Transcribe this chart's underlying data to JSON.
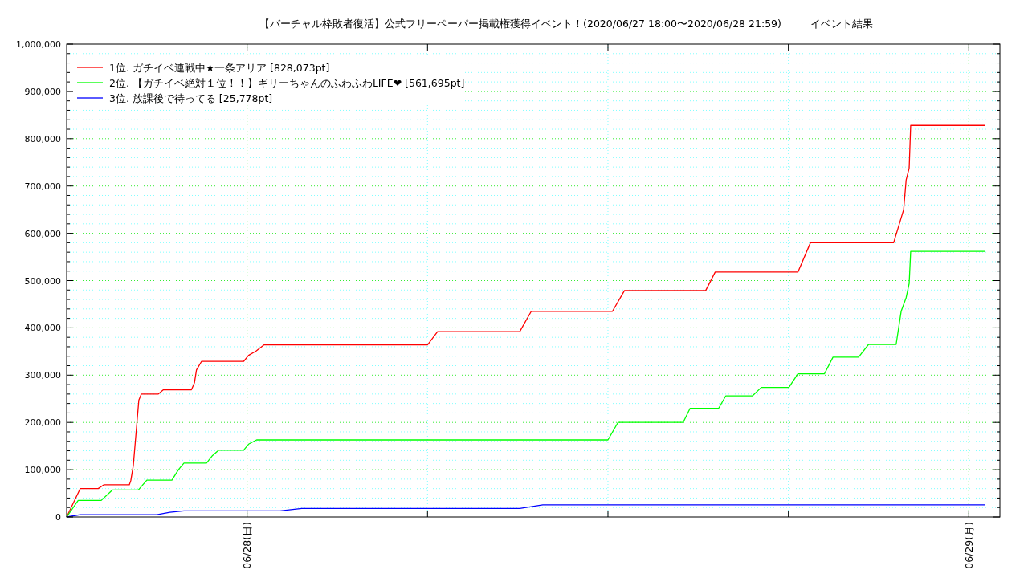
{
  "chart_data": {
    "type": "line",
    "title": "【バーチャル枠敗者復活】公式フリーペーパー掲載権獲得イベント！(2020/06/27 18:00〜2020/06/28 21:59)",
    "subtitle": "イベント結果",
    "xlim": [
      "2020-06-27T18:00",
      "2020-06-29T01:02"
    ],
    "xticks": [
      {
        "value": "2020-06-28T00:00",
        "label": "06/28(日)"
      },
      {
        "value": "2020-06-28T06:00",
        "label": null
      },
      {
        "value": "2020-06-28T12:00",
        "label": null
      },
      {
        "value": "2020-06-28T18:00",
        "label": null
      },
      {
        "value": "2020-06-29T00:00",
        "label": "06/29(月)"
      }
    ],
    "ylim": [
      0,
      1000000
    ],
    "yticks": [
      0,
      {
        "value": 20000,
        "label": null
      },
      {
        "value": 40000,
        "label": null
      },
      {
        "value": 60000,
        "label": null
      },
      {
        "value": 80000,
        "label": null
      },
      {
        "value": 100000,
        "label": "100,000"
      },
      {
        "value": 120000,
        "label": null
      },
      {
        "value": 140000,
        "label": null
      },
      {
        "value": 160000,
        "label": null
      },
      {
        "value": 180000,
        "label": null
      },
      {
        "value": 200000,
        "label": "200,000"
      },
      {
        "value": 220000,
        "label": null
      },
      {
        "value": 240000,
        "label": null
      },
      {
        "value": 260000,
        "label": null
      },
      {
        "value": 280000,
        "label": null
      },
      {
        "value": 300000,
        "label": "300,000"
      },
      {
        "value": 320000,
        "label": null
      },
      {
        "value": 340000,
        "label": null
      },
      {
        "value": 360000,
        "label": null
      },
      {
        "value": 380000,
        "label": null
      },
      {
        "value": 400000,
        "label": "400,000"
      },
      {
        "value": 420000,
        "label": null
      },
      {
        "value": 440000,
        "label": null
      },
      {
        "value": 460000,
        "label": null
      },
      {
        "value": 480000,
        "label": null
      },
      {
        "value": 500000,
        "label": "500,000"
      },
      {
        "value": 520000,
        "label": null
      },
      {
        "value": 540000,
        "label": null
      },
      {
        "value": 560000,
        "label": null
      },
      {
        "value": 580000,
        "label": null
      },
      {
        "value": 600000,
        "label": "600,000"
      },
      {
        "value": 620000,
        "label": null
      },
      {
        "value": 640000,
        "label": null
      },
      {
        "value": 660000,
        "label": null
      },
      {
        "value": 680000,
        "label": null
      },
      {
        "value": 700000,
        "label": "700,000"
      },
      {
        "value": 720000,
        "label": null
      },
      {
        "value": 740000,
        "label": null
      },
      {
        "value": 760000,
        "label": null
      },
      {
        "value": 780000,
        "label": null
      },
      {
        "value": 800000,
        "label": "800,000"
      },
      {
        "value": 820000,
        "label": null
      },
      {
        "value": 840000,
        "label": null
      },
      {
        "value": 860000,
        "label": null
      },
      {
        "value": 880000,
        "label": null
      },
      {
        "value": 900000,
        "label": "900,000"
      },
      {
        "value": 920000,
        "label": null
      },
      {
        "value": 940000,
        "label": null
      },
      {
        "value": 960000,
        "label": null
      },
      {
        "value": 980000,
        "label": null
      },
      {
        "value": 1000000,
        "label": "1,000,000"
      }
    ],
    "grid": true,
    "legend": "top left",
    "marker": "none",
    "line_style": "solid",
    "series": [
      {
        "name": "1位. ガチイベ連戦中★一条アリア [828,073pt]",
        "color": "#ff0000",
        "x": [
          "2020-06-27T18:00",
          "2020-06-27T18:27",
          "2020-06-27T19:03",
          "2020-06-27T19:14",
          "2020-06-27T20:05",
          "2020-06-27T20:08",
          "2020-06-27T20:13",
          "2020-06-27T20:24",
          "2020-06-27T20:29",
          "2020-06-27T21:03",
          "2020-06-27T21:13",
          "2020-06-27T22:09",
          "2020-06-27T22:15",
          "2020-06-27T22:19",
          "2020-06-27T22:29",
          "2020-06-27T23:53",
          "2020-06-28T00:03",
          "2020-06-28T00:18",
          "2020-06-28T00:34",
          "2020-06-28T06:00",
          "2020-06-28T06:20",
          "2020-06-28T09:04",
          "2020-06-28T09:27",
          "2020-06-28T12:09",
          "2020-06-28T12:33",
          "2020-06-28T15:15",
          "2020-06-28T15:34",
          "2020-06-28T18:19",
          "2020-06-28T18:44",
          "2020-06-28T21:30",
          "2020-06-28T21:50",
          "2020-06-28T21:55",
          "2020-06-28T22:01",
          "2020-06-28T22:04",
          "2020-06-29T00:33"
        ],
        "values": [
          0,
          60000,
          60000,
          68000,
          68000,
          77000,
          109000,
          247000,
          260000,
          260000,
          269000,
          269000,
          284000,
          311000,
          329000,
          329000,
          342000,
          351000,
          364000,
          364000,
          392000,
          392000,
          435000,
          435000,
          479000,
          479000,
          518000,
          518000,
          580000,
          580000,
          650000,
          713000,
          738000,
          828073,
          828073
        ]
      },
      {
        "name": "2位. 【ガチイベ絶対１位！！】ギリーちゃんのふわふわLIFE❤ [561,695pt]",
        "color": "#00ff00",
        "x": [
          "2020-06-27T18:00",
          "2020-06-27T18:23",
          "2020-06-27T19:09",
          "2020-06-27T19:31",
          "2020-06-27T20:23",
          "2020-06-27T20:40",
          "2020-06-27T21:30",
          "2020-06-27T21:43",
          "2020-06-27T21:54",
          "2020-06-27T22:39",
          "2020-06-27T22:51",
          "2020-06-27T23:03",
          "2020-06-27T23:53",
          "2020-06-28T00:03",
          "2020-06-28T00:19",
          "2020-06-28T12:00",
          "2020-06-28T12:20",
          "2020-06-28T14:30",
          "2020-06-28T14:44",
          "2020-06-28T15:41",
          "2020-06-28T15:55",
          "2020-06-28T16:48",
          "2020-06-28T17:06",
          "2020-06-28T18:01",
          "2020-06-28T18:19",
          "2020-06-28T19:12",
          "2020-06-28T19:29",
          "2020-06-28T20:20",
          "2020-06-28T20:40",
          "2020-06-28T21:35",
          "2020-06-28T21:45",
          "2020-06-28T21:55",
          "2020-06-28T22:01",
          "2020-06-28T22:04",
          "2020-06-29T00:33"
        ],
        "values": [
          0,
          35000,
          35000,
          57000,
          57000,
          78000,
          78000,
          100000,
          114000,
          114000,
          130000,
          141000,
          141000,
          154000,
          163000,
          163000,
          200000,
          200000,
          230000,
          230000,
          256000,
          256000,
          274000,
          274000,
          303000,
          303000,
          338000,
          338000,
          365000,
          365000,
          435000,
          464000,
          494000,
          561695,
          561695
        ]
      },
      {
        "name": "3位. 放課後で待ってる [25,778pt]",
        "color": "#0000ff",
        "x": [
          "2020-06-27T18:00",
          "2020-06-27T18:27",
          "2020-06-27T21:00",
          "2020-06-27T21:26",
          "2020-06-27T21:54",
          "2020-06-28T01:06",
          "2020-06-28T01:49",
          "2020-06-28T09:04",
          "2020-06-28T09:50",
          "2020-06-29T00:33"
        ],
        "values": [
          0,
          5000,
          5000,
          10000,
          13000,
          13000,
          18000,
          18000,
          25778,
          25778
        ]
      }
    ]
  }
}
